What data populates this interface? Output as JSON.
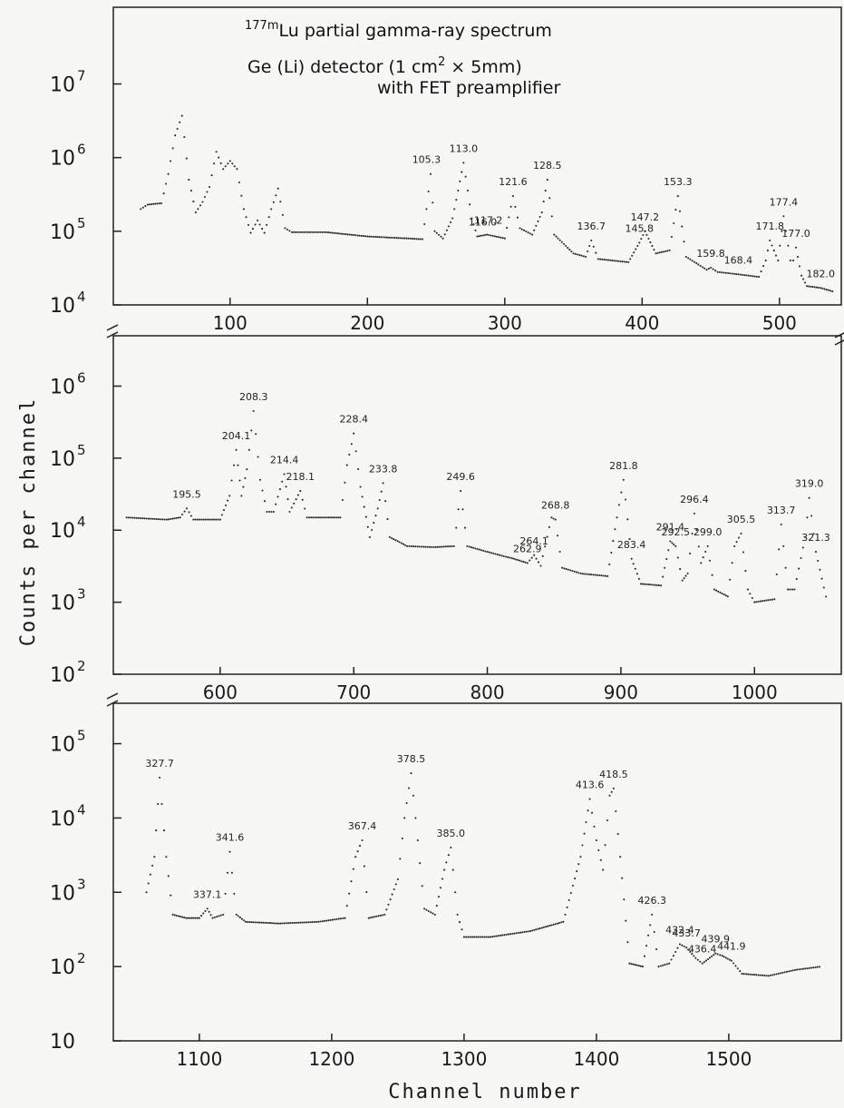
{
  "title": {
    "sup": "177m",
    "text": "Lu partial gamma-ray spectrum",
    "line2": "Ge (Li) detector (1 cm",
    "line2_sup": "2",
    "line2_rest": " × 5mm)",
    "line3": "with FET preamplifier"
  },
  "ylabel": "Counts  per  channel",
  "xlabel": "Channel  number",
  "chart_data": [
    {
      "type": "scatter",
      "scale": "log",
      "xlim": [
        15,
        545
      ],
      "ylim": [
        10000,
        110000000
      ],
      "x_ticks": [
        100,
        200,
        300,
        400,
        500
      ],
      "y_ticks": [
        {
          "base": "10",
          "exp": "4",
          "value": 10000
        },
        {
          "base": "10",
          "exp": "5",
          "value": 100000
        },
        {
          "base": "10",
          "exp": "6",
          "value": 1000000
        },
        {
          "base": "10",
          "exp": "7",
          "value": 10000000
        }
      ],
      "spectrum": [
        [
          35,
          200000
        ],
        [
          40,
          230000
        ],
        [
          50,
          240000
        ],
        [
          55,
          600000
        ],
        [
          60,
          2000000
        ],
        [
          65,
          3700000
        ],
        [
          70,
          500000
        ],
        [
          75,
          180000
        ],
        [
          80,
          250000
        ],
        [
          85,
          400000
        ],
        [
          90,
          1200000
        ],
        [
          95,
          700000
        ],
        [
          100,
          900000
        ],
        [
          105,
          700000
        ],
        [
          110,
          200000
        ],
        [
          115,
          95000
        ],
        [
          120,
          140000
        ],
        [
          125,
          95000
        ],
        [
          130,
          200000
        ],
        [
          135,
          380000
        ],
        [
          140,
          110000
        ],
        [
          145,
          97000
        ],
        [
          170,
          97000
        ],
        [
          200,
          85000
        ],
        [
          240,
          78000
        ],
        [
          243,
          200000
        ],
        [
          246,
          600000
        ],
        [
          249,
          100000
        ],
        [
          255,
          80000
        ],
        [
          262,
          150000
        ],
        [
          270,
          850000
        ],
        [
          276,
          150000
        ],
        [
          280,
          85000
        ],
        [
          287,
          90000
        ],
        [
          300,
          80000
        ],
        [
          306,
          300000
        ],
        [
          311,
          110000
        ],
        [
          320,
          90000
        ],
        [
          327,
          180000
        ],
        [
          331,
          500000
        ],
        [
          336,
          90000
        ],
        [
          350,
          50000
        ],
        [
          359,
          45000
        ],
        [
          363,
          75000
        ],
        [
          368,
          42000
        ],
        [
          390,
          38000
        ],
        [
          398,
          70000
        ],
        [
          402,
          100000
        ],
        [
          410,
          50000
        ],
        [
          420,
          55000
        ],
        [
          426,
          300000
        ],
        [
          432,
          45000
        ],
        [
          447,
          30000
        ],
        [
          450,
          32000
        ],
        [
          455,
          28000
        ],
        [
          470,
          26000
        ],
        [
          485,
          24000
        ],
        [
          490,
          40000
        ],
        [
          493,
          75000
        ],
        [
          499,
          40000
        ],
        [
          503,
          160000
        ],
        [
          508,
          40000
        ],
        [
          510,
          40000
        ],
        [
          512,
          60000
        ],
        [
          516,
          25000
        ],
        [
          520,
          18000
        ],
        [
          530,
          17000
        ],
        [
          540,
          15000
        ]
      ],
      "annotations": [
        {
          "label": "105.3",
          "x": 243,
          "y": 600000
        },
        {
          "label": "113.0",
          "x": 270,
          "y": 850000
        },
        {
          "label": "116.0",
          "x": 284,
          "y": 85000
        },
        {
          "label": "117.2",
          "x": 288,
          "y": 90000
        },
        {
          "label": "121.6",
          "x": 306,
          "y": 300000
        },
        {
          "label": "128.5",
          "x": 331,
          "y": 500000
        },
        {
          "label": "136.7",
          "x": 363,
          "y": 75000
        },
        {
          "label": "145.8",
          "x": 398,
          "y": 70000
        },
        {
          "label": "147.2",
          "x": 402,
          "y": 100000
        },
        {
          "label": "153.3",
          "x": 426,
          "y": 300000
        },
        {
          "label": "159.8",
          "x": 450,
          "y": 32000
        },
        {
          "label": "168.4",
          "x": 470,
          "y": 26000
        },
        {
          "label": "171.8",
          "x": 493,
          "y": 75000
        },
        {
          "label": "177.4",
          "x": 503,
          "y": 160000
        },
        {
          "label": "177.0",
          "x": 512,
          "y": 60000
        },
        {
          "label": "182.0",
          "x": 530,
          "y": 17000
        }
      ]
    },
    {
      "type": "scatter",
      "scale": "log",
      "xlim": [
        520,
        1065
      ],
      "ylim": [
        100,
        5000000
      ],
      "x_ticks": [
        600,
        700,
        800,
        900,
        1000
      ],
      "y_ticks": [
        {
          "base": "10",
          "exp": "2",
          "value": 100
        },
        {
          "base": "10",
          "exp": "3",
          "value": 1000
        },
        {
          "base": "10",
          "exp": "4",
          "value": 10000
        },
        {
          "base": "10",
          "exp": "5",
          "value": 100000
        },
        {
          "base": "10",
          "exp": "6",
          "value": 1000000
        }
      ],
      "spectrum": [
        [
          530,
          15000
        ],
        [
          560,
          14000
        ],
        [
          570,
          15000
        ],
        [
          575,
          20000
        ],
        [
          580,
          14000
        ],
        [
          600,
          14000
        ],
        [
          607,
          30000
        ],
        [
          612,
          130000
        ],
        [
          616,
          30000
        ],
        [
          620,
          70000
        ],
        [
          625,
          450000
        ],
        [
          630,
          50000
        ],
        [
          635,
          18000
        ],
        [
          640,
          18000
        ],
        [
          648,
          60000
        ],
        [
          652,
          18000
        ],
        [
          660,
          35000
        ],
        [
          665,
          15000
        ],
        [
          680,
          15000
        ],
        [
          690,
          15000
        ],
        [
          695,
          80000
        ],
        [
          700,
          220000
        ],
        [
          705,
          40000
        ],
        [
          712,
          8000
        ],
        [
          718,
          20000
        ],
        [
          722,
          45000
        ],
        [
          727,
          8000
        ],
        [
          740,
          6000
        ],
        [
          760,
          5800
        ],
        [
          775,
          6000
        ],
        [
          780,
          35000
        ],
        [
          785,
          6000
        ],
        [
          800,
          5000
        ],
        [
          820,
          4000
        ],
        [
          830,
          3500
        ],
        [
          835,
          4500
        ],
        [
          840,
          3200
        ],
        [
          848,
          15000
        ],
        [
          851,
          14000
        ],
        [
          856,
          3000
        ],
        [
          870,
          2500
        ],
        [
          890,
          2300
        ],
        [
          897,
          15000
        ],
        [
          902,
          50000
        ],
        [
          908,
          4000
        ],
        [
          915,
          1800
        ],
        [
          930,
          1700
        ],
        [
          937,
          7000
        ],
        [
          941,
          6000
        ],
        [
          946,
          2000
        ],
        [
          950,
          2500
        ],
        [
          955,
          17000
        ],
        [
          960,
          3500
        ],
        [
          965,
          6000
        ],
        [
          970,
          1500
        ],
        [
          980,
          1200
        ],
        [
          985,
          6000
        ],
        [
          990,
          9000
        ],
        [
          995,
          1500
        ],
        [
          1000,
          1000
        ],
        [
          1015,
          1100
        ],
        [
          1020,
          12000
        ],
        [
          1025,
          1500
        ],
        [
          1030,
          1500
        ],
        [
          1038,
          8000
        ],
        [
          1041,
          28000
        ],
        [
          1046,
          5000
        ],
        [
          1055,
          900
        ]
      ],
      "annotations": [
        {
          "label": "195.5",
          "x": 575,
          "y": 20000
        },
        {
          "label": "204.1",
          "x": 612,
          "y": 130000
        },
        {
          "label": "208.3",
          "x": 625,
          "y": 450000
        },
        {
          "label": "214.4",
          "x": 648,
          "y": 60000
        },
        {
          "label": "218.1",
          "x": 660,
          "y": 35000
        },
        {
          "label": "228.4",
          "x": 700,
          "y": 220000
        },
        {
          "label": "233.8",
          "x": 722,
          "y": 45000
        },
        {
          "label": "249.6",
          "x": 780,
          "y": 35000
        },
        {
          "label": "262.9",
          "x": 830,
          "y": 3500
        },
        {
          "label": "264.1",
          "x": 835,
          "y": 4500
        },
        {
          "label": "268.8",
          "x": 851,
          "y": 14000
        },
        {
          "label": "281.8",
          "x": 902,
          "y": 50000
        },
        {
          "label": "283.4",
          "x": 908,
          "y": 4000
        },
        {
          "label": "291.4",
          "x": 937,
          "y": 7000
        },
        {
          "label": "292.5",
          "x": 941,
          "y": 6000
        },
        {
          "label": "296.4",
          "x": 955,
          "y": 17000
        },
        {
          "label": "299.0",
          "x": 965,
          "y": 6000
        },
        {
          "label": "305.5",
          "x": 990,
          "y": 9000
        },
        {
          "label": "313.7",
          "x": 1020,
          "y": 12000
        },
        {
          "label": "319.0",
          "x": 1041,
          "y": 28000
        },
        {
          "label": "321.3",
          "x": 1046,
          "y": 5000
        }
      ]
    },
    {
      "type": "scatter",
      "scale": "log",
      "xlim": [
        1035,
        1585
      ],
      "ylim": [
        10,
        350000
      ],
      "x_ticks": [
        1100,
        1200,
        1300,
        1400,
        1500
      ],
      "y_ticks": [
        {
          "base": "10",
          "exp": "",
          "value": 10
        },
        {
          "base": "10",
          "exp": "2",
          "value": 100
        },
        {
          "base": "10",
          "exp": "3",
          "value": 1000
        },
        {
          "base": "10",
          "exp": "4",
          "value": 10000
        },
        {
          "base": "10",
          "exp": "5",
          "value": 100000
        }
      ],
      "spectrum": [
        [
          1060,
          1000
        ],
        [
          1066,
          3000
        ],
        [
          1070,
          35000
        ],
        [
          1075,
          3000
        ],
        [
          1080,
          500
        ],
        [
          1090,
          450
        ],
        [
          1100,
          450
        ],
        [
          1106,
          600
        ],
        [
          1110,
          450
        ],
        [
          1118,
          500
        ],
        [
          1123,
          3500
        ],
        [
          1128,
          500
        ],
        [
          1135,
          400
        ],
        [
          1160,
          380
        ],
        [
          1190,
          400
        ],
        [
          1210,
          450
        ],
        [
          1218,
          3000
        ],
        [
          1223,
          5000
        ],
        [
          1228,
          450
        ],
        [
          1240,
          500
        ],
        [
          1250,
          1500
        ],
        [
          1255,
          10000
        ],
        [
          1260,
          40000
        ],
        [
          1265,
          5000
        ],
        [
          1270,
          600
        ],
        [
          1278,
          500
        ],
        [
          1285,
          2000
        ],
        [
          1290,
          4000
        ],
        [
          1295,
          500
        ],
        [
          1300,
          250
        ],
        [
          1320,
          250
        ],
        [
          1350,
          300
        ],
        [
          1375,
          400
        ],
        [
          1388,
          3000
        ],
        [
          1395,
          18000
        ],
        [
          1400,
          5000
        ],
        [
          1405,
          2000
        ],
        [
          1410,
          20000
        ],
        [
          1413,
          25000
        ],
        [
          1418,
          3000
        ],
        [
          1425,
          110
        ],
        [
          1435,
          100
        ],
        [
          1442,
          500
        ],
        [
          1447,
          100
        ],
        [
          1455,
          110
        ],
        [
          1463,
          200
        ],
        [
          1468,
          180
        ],
        [
          1475,
          130
        ],
        [
          1480,
          110
        ],
        [
          1490,
          150
        ],
        [
          1495,
          140
        ],
        [
          1502,
          120
        ],
        [
          1510,
          80
        ],
        [
          1530,
          75
        ],
        [
          1550,
          90
        ],
        [
          1570,
          100
        ]
      ],
      "annotations": [
        {
          "label": "327.7",
          "x": 1070,
          "y": 35000
        },
        {
          "label": "337.1",
          "x": 1106,
          "y": 600
        },
        {
          "label": "341.6",
          "x": 1123,
          "y": 3500
        },
        {
          "label": "367.4",
          "x": 1223,
          "y": 5000
        },
        {
          "label": "378.5",
          "x": 1260,
          "y": 40000
        },
        {
          "label": "385.0",
          "x": 1290,
          "y": 4000
        },
        {
          "label": "413.6",
          "x": 1395,
          "y": 18000
        },
        {
          "label": "418.5",
          "x": 1413,
          "y": 25000
        },
        {
          "label": "426.3",
          "x": 1442,
          "y": 500
        },
        {
          "label": "432.4",
          "x": 1463,
          "y": 200
        },
        {
          "label": "433.7",
          "x": 1468,
          "y": 180
        },
        {
          "label": "436.4",
          "x": 1480,
          "y": 110
        },
        {
          "label": "439.9",
          "x": 1490,
          "y": 150
        },
        {
          "label": "441.9",
          "x": 1502,
          "y": 120
        }
      ]
    }
  ]
}
